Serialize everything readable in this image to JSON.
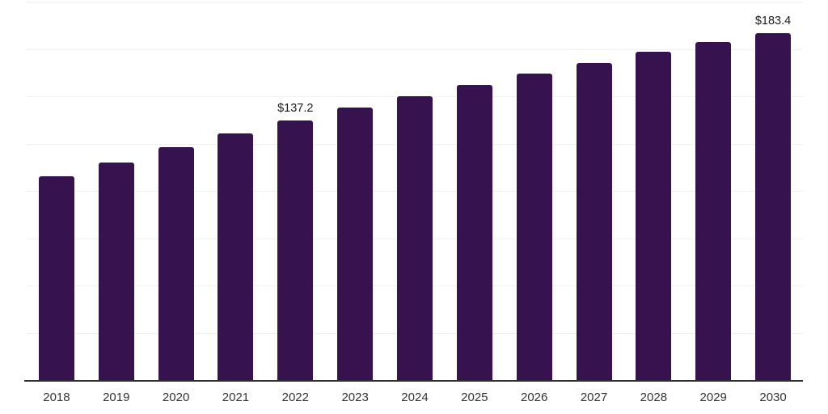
{
  "chart_data": {
    "type": "bar",
    "title": "",
    "xlabel": "",
    "ylabel": "",
    "categories": [
      "2018",
      "2019",
      "2020",
      "2021",
      "2022",
      "2023",
      "2024",
      "2025",
      "2026",
      "2027",
      "2028",
      "2029",
      "2030"
    ],
    "series": [
      {
        "name": "market-value-usd-billion",
        "values": [
          107.9,
          115.1,
          123.0,
          130.4,
          137.2,
          143.9,
          150.0,
          155.9,
          162.1,
          167.7,
          173.7,
          178.6,
          183.4
        ]
      }
    ],
    "data_labels": [
      {
        "category": "2022",
        "text": "$137.2"
      },
      {
        "category": "2030",
        "text": "$183.4"
      }
    ],
    "ylim": [
      0,
      200
    ],
    "grid_step": 25,
    "grid": "horizontal-only",
    "y_axis_labels_visible": false,
    "legend_position": "none",
    "colors": {
      "bar": "#36124f",
      "gridline": "#f1f1f3",
      "axis_line": "#2e2e2e",
      "data_label_text": "#1a1a1a",
      "tick_text": "#333333",
      "background": "#ffffff"
    }
  }
}
